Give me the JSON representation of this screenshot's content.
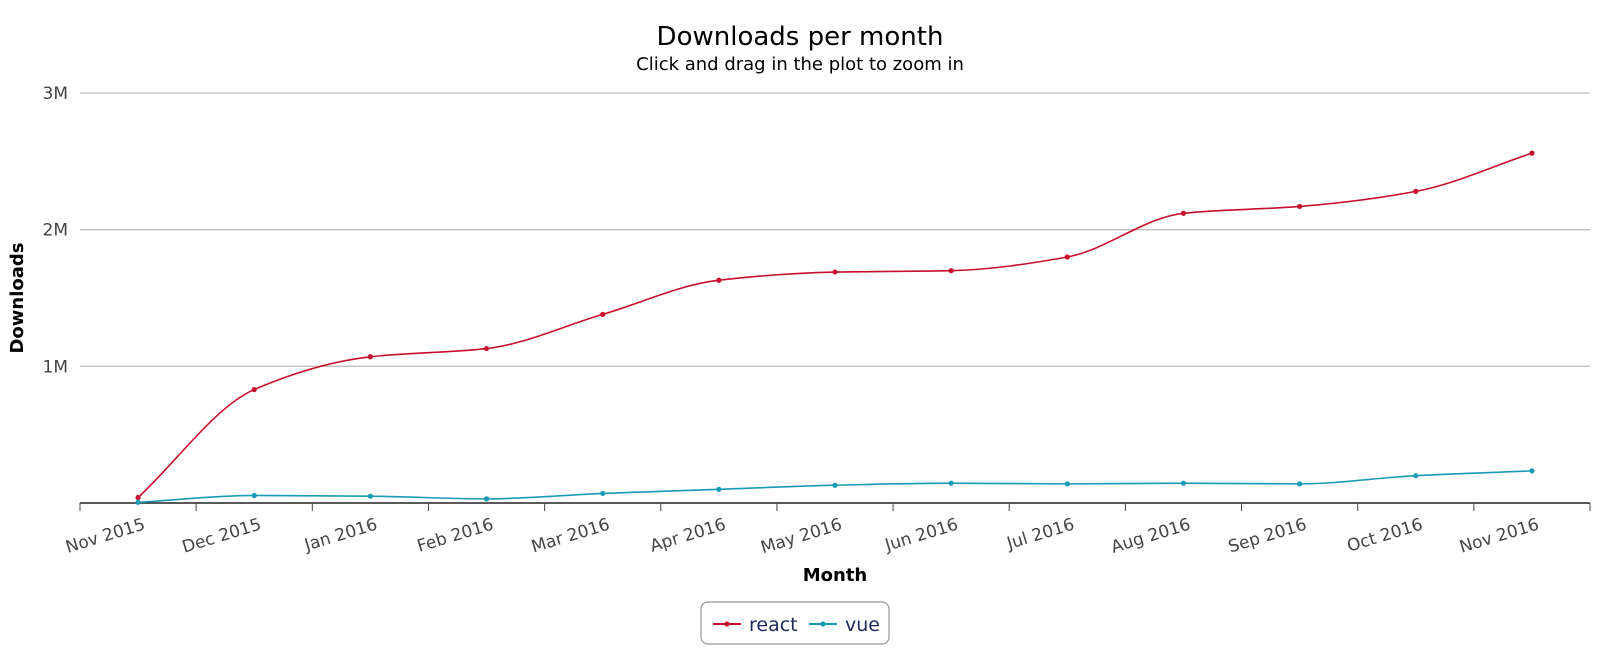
{
  "chart_data": {
    "type": "line",
    "title": "Downloads per month",
    "subtitle": "Click and drag in the plot to zoom in",
    "xlabel": "Month",
    "ylabel": "Downloads",
    "categories": [
      "Nov 2015",
      "Dec 2015",
      "Jan 2016",
      "Feb 2016",
      "Mar 2016",
      "Apr 2016",
      "May 2016",
      "Jun 2016",
      "Jul 2016",
      "Aug 2016",
      "Sep 2016",
      "Oct 2016",
      "Nov 2016"
    ],
    "ylim": [
      0,
      3000000
    ],
    "yticks": [
      {
        "value": 1000000,
        "label": "1M"
      },
      {
        "value": 2000000,
        "label": "2M"
      },
      {
        "value": 3000000,
        "label": "3M"
      }
    ],
    "grid": true,
    "legend_position": "bottom-center",
    "series": [
      {
        "name": "react",
        "color": "#c8102e",
        "values": [
          40000,
          830000,
          1070000,
          1130000,
          1380000,
          1630000,
          1690000,
          1700000,
          1800000,
          2120000,
          2170000,
          2280000,
          2560000
        ]
      },
      {
        "name": "vue",
        "color": "#1a9bb5",
        "values": [
          5000,
          55000,
          50000,
          30000,
          70000,
          100000,
          130000,
          145000,
          140000,
          145000,
          140000,
          200000,
          235000
        ]
      }
    ]
  }
}
